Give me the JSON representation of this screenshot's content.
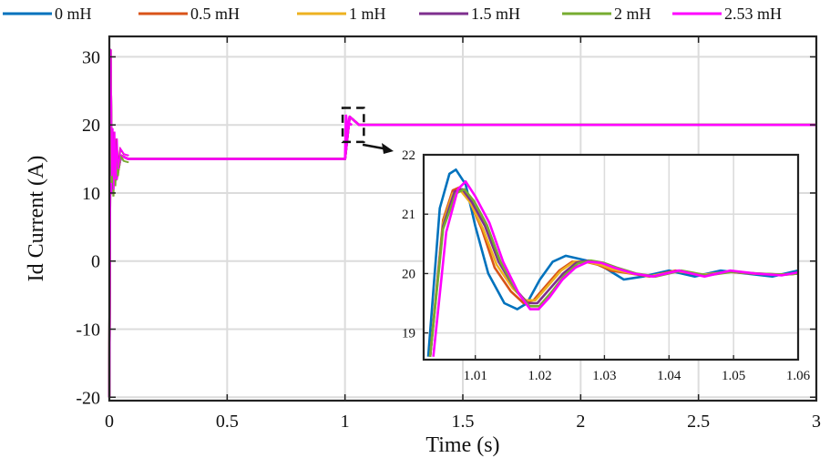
{
  "chart_data": {
    "type": "line",
    "xlabel": "Time (s)",
    "ylabel": "Id Current (A)",
    "xlim": [
      0,
      3
    ],
    "ylim": [
      -20.5,
      33
    ],
    "x_ticks": [
      "0",
      "0.5",
      "1",
      "1.5",
      "2",
      "2.5",
      "3"
    ],
    "y_ticks": [
      "-20",
      "-10",
      "0",
      "10",
      "20",
      "30"
    ],
    "grid": true,
    "legend_position": "top",
    "series": [
      {
        "name": "0 mH",
        "color": "#0072BD"
      },
      {
        "name": "0.5 mH",
        "color": "#D95319"
      },
      {
        "name": "1 mH",
        "color": "#EDB120"
      },
      {
        "name": "1.5 mH",
        "color": "#7E2F8E"
      },
      {
        "name": "2 mH",
        "color": "#77AC30"
      },
      {
        "name": "2.53 mH",
        "color": "#FF00FF"
      }
    ],
    "main_profile": {
      "description": "Step response: initial transient to ~31 A then settle at 15 A; step to 20 A at t = 1 s",
      "t": [
        0,
        0.005,
        0.01,
        0.02,
        0.03,
        0.05,
        0.08,
        0.12,
        0.2,
        0.5,
        0.99,
        1.0,
        1.02,
        1.06,
        1.5,
        2.0,
        2.5,
        3.0
      ],
      "id": [
        -20,
        31,
        10,
        18,
        12,
        15.5,
        15,
        15,
        15,
        15,
        15,
        15,
        21.2,
        20,
        20,
        20,
        20,
        20
      ]
    },
    "inset": {
      "xlim": [
        1.002,
        1.06
      ],
      "ylim": [
        18.55,
        22
      ],
      "x_ticks": [
        "1.01",
        "1.02",
        "1.03",
        "1.04",
        "1.05",
        "1.06"
      ],
      "y_ticks": [
        "19",
        "20",
        "21",
        "22"
      ],
      "source_region": {
        "x": [
          0.99,
          1.08
        ],
        "y": [
          17.5,
          22.5
        ]
      },
      "series_points": {
        "0 mH": {
          "t": [
            1.0027,
            1.0045,
            1.006,
            1.007,
            1.0085,
            1.01,
            1.012,
            1.0145,
            1.0165,
            1.018,
            1.02,
            1.022,
            1.024,
            1.026,
            1.028,
            1.03,
            1.033,
            1.036,
            1.04,
            1.044,
            1.048,
            1.052,
            1.056,
            1.06
          ],
          "id": [
            18.6,
            21.1,
            21.68,
            21.75,
            21.5,
            20.8,
            20.0,
            19.5,
            19.4,
            19.5,
            19.9,
            20.2,
            20.3,
            20.25,
            20.2,
            20.1,
            19.9,
            19.95,
            20.05,
            19.95,
            20.05,
            20.0,
            19.95,
            20.05
          ]
        },
        "0.5 mH": {
          "t": [
            1.003,
            1.005,
            1.0065,
            1.0075,
            1.009,
            1.011,
            1.013,
            1.0155,
            1.0175,
            1.019,
            1.021,
            1.023,
            1.025,
            1.027,
            1.029,
            1.031,
            1.034,
            1.037,
            1.041,
            1.045,
            1.049,
            1.053,
            1.057,
            1.06
          ],
          "id": [
            18.6,
            20.9,
            21.4,
            21.45,
            21.25,
            20.75,
            20.1,
            19.7,
            19.5,
            19.55,
            19.8,
            20.05,
            20.2,
            20.2,
            20.15,
            20.05,
            20.0,
            19.95,
            20.05,
            19.97,
            20.03,
            20.0,
            19.98,
            20.0
          ]
        },
        "1 mH": {
          "t": [
            1.003,
            1.005,
            1.0065,
            1.0077,
            1.0092,
            1.0112,
            1.0133,
            1.0158,
            1.0178,
            1.0193,
            1.0213,
            1.0233,
            1.0253,
            1.0273,
            1.0293,
            1.0313,
            1.0343,
            1.0373,
            1.0413,
            1.0453,
            1.0493,
            1.0533,
            1.0573,
            1.06
          ],
          "id": [
            18.6,
            20.85,
            21.35,
            21.4,
            21.2,
            20.75,
            20.15,
            19.75,
            19.55,
            19.55,
            19.8,
            20.05,
            20.2,
            20.2,
            20.15,
            20.07,
            20.0,
            19.96,
            20.04,
            19.98,
            20.03,
            20.0,
            19.98,
            20.0
          ]
        },
        "1.5 mH": {
          "t": [
            1.003,
            1.005,
            1.0068,
            1.008,
            1.0095,
            1.0115,
            1.0136,
            1.0161,
            1.0181,
            1.0196,
            1.0216,
            1.0236,
            1.0256,
            1.0276,
            1.0296,
            1.0316,
            1.0346,
            1.0376,
            1.0416,
            1.0456,
            1.0496,
            1.0536,
            1.0576,
            1.06
          ],
          "id": [
            18.6,
            20.8,
            21.38,
            21.42,
            21.2,
            20.8,
            20.2,
            19.75,
            19.5,
            19.5,
            19.75,
            20.0,
            20.18,
            20.22,
            20.18,
            20.1,
            20.0,
            19.95,
            20.05,
            19.97,
            20.03,
            20.0,
            19.98,
            20.0
          ]
        },
        "2 mH": {
          "t": [
            1.003,
            1.005,
            1.007,
            1.0083,
            1.0098,
            1.0118,
            1.0139,
            1.0164,
            1.0184,
            1.0199,
            1.0219,
            1.0239,
            1.0259,
            1.0279,
            1.0299,
            1.0319,
            1.0349,
            1.0379,
            1.0419,
            1.0459,
            1.0499,
            1.0539,
            1.0579,
            1.06
          ],
          "id": [
            18.6,
            20.75,
            21.35,
            21.42,
            21.22,
            20.82,
            20.2,
            19.7,
            19.45,
            19.45,
            19.7,
            19.98,
            20.17,
            20.22,
            20.18,
            20.1,
            20.0,
            19.95,
            20.05,
            19.97,
            20.03,
            20.0,
            19.98,
            20.0
          ]
        },
        "2.53 mH": {
          "t": [
            1.0035,
            1.0055,
            1.0073,
            1.0085,
            1.01,
            1.0122,
            1.0143,
            1.0168,
            1.0185,
            1.0198,
            1.0215,
            1.0235,
            1.0255,
            1.0275,
            1.0295,
            1.0315,
            1.0345,
            1.0375,
            1.0415,
            1.0455,
            1.0495,
            1.0535,
            1.0575,
            1.06
          ],
          "id": [
            18.6,
            20.7,
            21.42,
            21.55,
            21.3,
            20.85,
            20.2,
            19.65,
            19.4,
            19.4,
            19.6,
            19.9,
            20.1,
            20.2,
            20.18,
            20.1,
            20.0,
            19.95,
            20.05,
            19.95,
            20.05,
            20.0,
            19.97,
            20.02
          ]
        }
      }
    }
  }
}
